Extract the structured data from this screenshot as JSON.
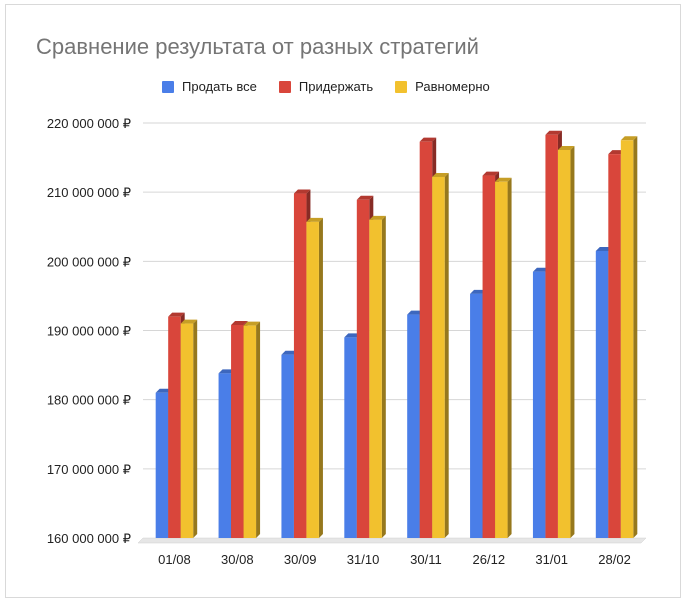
{
  "chart_data": {
    "type": "bar",
    "style": "3d-clustered",
    "title": "Сравнение результата от разных стратегий",
    "xlabel": "",
    "ylabel": "",
    "categories": [
      "01/08",
      "30/08",
      "30/09",
      "31/10",
      "30/11",
      "26/12",
      "31/01",
      "28/02"
    ],
    "series": [
      {
        "name": "Продать все",
        "color": "#4a7ee8",
        "values": [
          181000000,
          183800000,
          186500000,
          189000000,
          192300000,
          195300000,
          198500000,
          201500000
        ]
      },
      {
        "name": "Придержать",
        "color": "#d9463b",
        "values": [
          192000000,
          190800000,
          209800000,
          208900000,
          217300000,
          212400000,
          218300000,
          215500000
        ]
      },
      {
        "name": "Равномерно",
        "color": "#f2c12e",
        "values": [
          191000000,
          190700000,
          205700000,
          206000000,
          212200000,
          211500000,
          216100000,
          217500000
        ]
      }
    ],
    "ylim": [
      160000000,
      220000000
    ],
    "yticks": [
      160000000,
      170000000,
      180000000,
      190000000,
      200000000,
      210000000,
      220000000
    ],
    "ytick_labels": [
      "160 000 000 ₽",
      "170 000 000 ₽",
      "180 000 000 ₽",
      "190 000 000 ₽",
      "200 000 000 ₽",
      "210 000 000 ₽",
      "220 000 000 ₽"
    ],
    "grid": true,
    "legend_position": "top"
  }
}
